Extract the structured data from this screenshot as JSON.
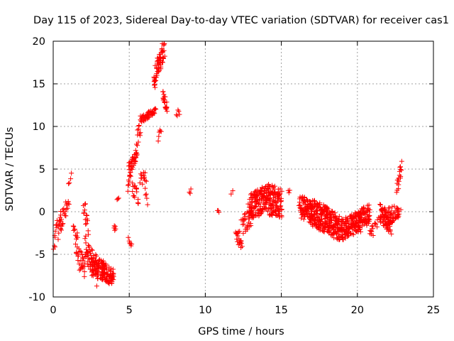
{
  "chart_data": {
    "type": "scatter",
    "title": "Day 115 of 2023, Sidereal Day-to-day VTEC variation (SDTVAR) for receiver cas1",
    "xlabel": "GPS time / hours",
    "ylabel": "SDTVAR / TECUs",
    "xlim": [
      0,
      25
    ],
    "ylim": [
      -10,
      20
    ],
    "xticks": [
      0,
      5,
      10,
      15,
      20,
      25
    ],
    "yticks": [
      -10,
      -5,
      0,
      5,
      10,
      15,
      20
    ],
    "xtick_labels": [
      "0",
      "5",
      "10",
      "15",
      "20",
      "25"
    ],
    "ytick_labels": [
      "-10",
      "-5",
      "0",
      "5",
      "10",
      "15",
      "20"
    ],
    "grid": true,
    "marker": "+",
    "marker_color": "#ff0000",
    "segments": [
      {
        "x0": 0.05,
        "x1": 0.5,
        "y0": -3.5,
        "y1": -1.0,
        "spread": 1.2,
        "n": 20
      },
      {
        "x0": 0.4,
        "x1": 1.0,
        "y0": -2.0,
        "y1": 1.5,
        "spread": 1.0,
        "n": 25
      },
      {
        "x0": 1.0,
        "x1": 1.2,
        "y0": 3.5,
        "y1": 4.3,
        "spread": 0.4,
        "n": 4
      },
      {
        "x0": 1.3,
        "x1": 1.6,
        "y0": -2.0,
        "y1": -3.0,
        "spread": 0.6,
        "n": 10
      },
      {
        "x0": 1.5,
        "x1": 2.1,
        "y0": -5.0,
        "y1": -6.5,
        "spread": 1.2,
        "n": 30
      },
      {
        "x0": 2.0,
        "x1": 2.3,
        "y0": 1.0,
        "y1": -2.0,
        "spread": 1.0,
        "n": 15
      },
      {
        "x0": 2.1,
        "x1": 2.9,
        "y0": -4.0,
        "y1": -7.5,
        "spread": 1.5,
        "n": 60
      },
      {
        "x0": 2.6,
        "x1": 3.3,
        "y0": -6.0,
        "y1": -7.0,
        "spread": 1.3,
        "n": 50
      },
      {
        "x0": 3.2,
        "x1": 4.0,
        "y0": -7.0,
        "y1": -7.6,
        "spread": 1.1,
        "n": 70
      },
      {
        "x0": 4.0,
        "x1": 4.1,
        "y0": -1.8,
        "y1": -2.0,
        "spread": 0.3,
        "n": 5
      },
      {
        "x0": 4.2,
        "x1": 4.3,
        "y0": 1.5,
        "y1": 1.6,
        "spread": 0.3,
        "n": 3
      },
      {
        "x0": 4.9,
        "x1": 5.1,
        "y0": 2.5,
        "y1": 4.5,
        "spread": 0.6,
        "n": 10
      },
      {
        "x0": 4.95,
        "x1": 5.15,
        "y0": -3.2,
        "y1": -3.8,
        "spread": 0.4,
        "n": 6
      },
      {
        "x0": 5.0,
        "x1": 5.5,
        "y0": 5.0,
        "y1": 6.8,
        "spread": 0.7,
        "n": 35
      },
      {
        "x0": 5.2,
        "x1": 5.6,
        "y0": 3.0,
        "y1": 1.8,
        "spread": 1.0,
        "n": 15
      },
      {
        "x0": 5.5,
        "x1": 5.8,
        "y0": 8.0,
        "y1": 11.0,
        "spread": 1.0,
        "n": 15
      },
      {
        "x0": 5.7,
        "x1": 6.1,
        "y0": 3.5,
        "y1": 4.5,
        "spread": 1.0,
        "n": 12
      },
      {
        "x0": 6.0,
        "x1": 6.2,
        "y0": 3.5,
        "y1": 1.0,
        "spread": 0.6,
        "n": 6
      },
      {
        "x0": 5.8,
        "x1": 6.7,
        "y0": 10.8,
        "y1": 11.8,
        "spread": 0.4,
        "n": 45
      },
      {
        "x0": 6.6,
        "x1": 7.3,
        "y0": 15.5,
        "y1": 19.0,
        "spread": 1.2,
        "n": 60
      },
      {
        "x0": 6.9,
        "x1": 7.1,
        "y0": 8.5,
        "y1": 9.5,
        "spread": 0.5,
        "n": 6
      },
      {
        "x0": 7.2,
        "x1": 7.5,
        "y0": 14.0,
        "y1": 12.0,
        "spread": 0.8,
        "n": 20
      },
      {
        "x0": 8.1,
        "x1": 8.3,
        "y0": 11.5,
        "y1": 11.8,
        "spread": 0.4,
        "n": 5
      },
      {
        "x0": 8.95,
        "x1": 9.05,
        "y0": 2.0,
        "y1": 2.4,
        "spread": 0.3,
        "n": 3
      },
      {
        "x0": 10.8,
        "x1": 10.9,
        "y0": 0.0,
        "y1": 0.1,
        "spread": 0.2,
        "n": 3
      },
      {
        "x0": 11.7,
        "x1": 11.8,
        "y0": 2.0,
        "y1": 2.2,
        "spread": 0.3,
        "n": 2
      },
      {
        "x0": 12.0,
        "x1": 12.4,
        "y0": -2.5,
        "y1": -3.6,
        "spread": 1.0,
        "n": 20
      },
      {
        "x0": 12.4,
        "x1": 13.0,
        "y0": -2.0,
        "y1": -0.5,
        "spread": 1.2,
        "n": 30
      },
      {
        "x0": 12.9,
        "x1": 14.0,
        "y0": 0.5,
        "y1": 1.5,
        "spread": 1.6,
        "n": 120
      },
      {
        "x0": 14.0,
        "x1": 15.0,
        "y0": 1.5,
        "y1": 1.0,
        "spread": 1.8,
        "n": 130
      },
      {
        "x0": 15.45,
        "x1": 15.55,
        "y0": 2.3,
        "y1": 2.5,
        "spread": 0.2,
        "n": 3
      },
      {
        "x0": 16.2,
        "x1": 17.0,
        "y0": 0.5,
        "y1": 0.0,
        "spread": 1.4,
        "n": 80
      },
      {
        "x0": 16.9,
        "x1": 18.0,
        "y0": 0.0,
        "y1": -1.0,
        "spread": 1.6,
        "n": 140
      },
      {
        "x0": 17.9,
        "x1": 19.0,
        "y0": -1.0,
        "y1": -2.0,
        "spread": 1.5,
        "n": 130
      },
      {
        "x0": 19.0,
        "x1": 20.2,
        "y0": -2.0,
        "y1": -1.0,
        "spread": 1.3,
        "n": 130
      },
      {
        "x0": 20.1,
        "x1": 20.8,
        "y0": -0.8,
        "y1": -0.2,
        "spread": 1.1,
        "n": 60
      },
      {
        "x0": 20.6,
        "x1": 21.0,
        "y0": -1.5,
        "y1": -2.0,
        "spread": 0.9,
        "n": 15
      },
      {
        "x0": 21.0,
        "x1": 21.4,
        "y0": -2.2,
        "y1": -1.0,
        "spread": 0.8,
        "n": 8
      },
      {
        "x0": 21.5,
        "x1": 22.2,
        "y0": -0.2,
        "y1": -1.5,
        "spread": 1.2,
        "n": 70
      },
      {
        "x0": 22.0,
        "x1": 22.8,
        "y0": -0.5,
        "y1": 0.0,
        "spread": 1.0,
        "n": 40
      },
      {
        "x0": 22.6,
        "x1": 22.9,
        "y0": 2.5,
        "y1": 5.5,
        "spread": 0.8,
        "n": 18
      }
    ]
  }
}
